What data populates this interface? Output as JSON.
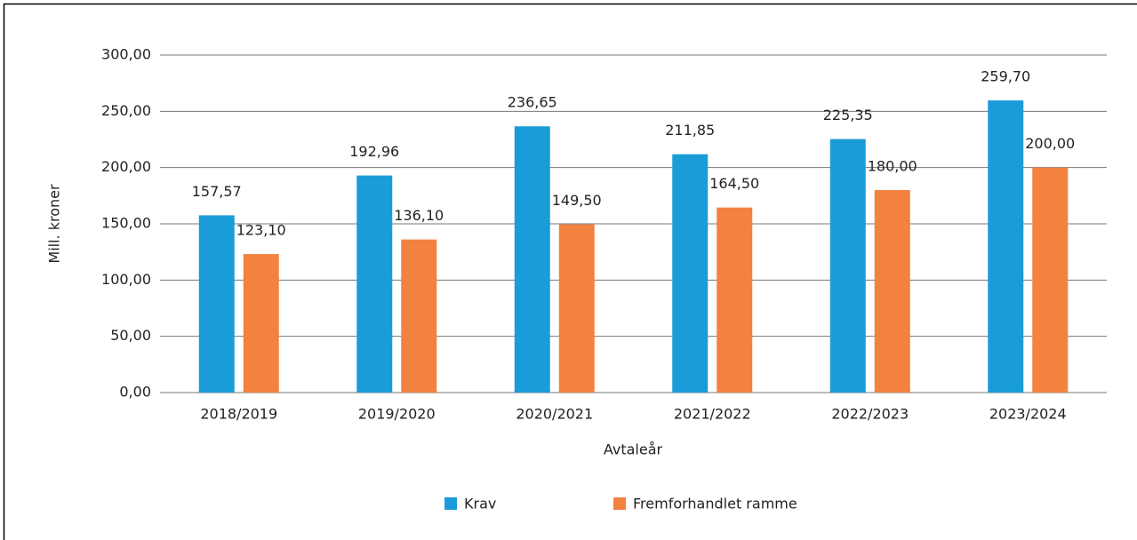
{
  "chart_data": {
    "type": "bar",
    "x_label": "Avtaleår",
    "y_label": "Mill. kroner",
    "categories": [
      "2018/2019",
      "2019/2020",
      "2020/2021",
      "2021/2022",
      "2022/2023",
      "2023/2024"
    ],
    "series": [
      {
        "name": "Krav",
        "color": "#1a9cd9",
        "values": [
          157.57,
          192.96,
          236.65,
          211.85,
          225.35,
          259.7
        ],
        "value_labels": [
          "157,57",
          "192,96",
          "236,65",
          "211,85",
          "225,35",
          "259,70"
        ]
      },
      {
        "name": "Fremforhandlet ramme",
        "color": "#f3813f",
        "values": [
          123.1,
          136.1,
          149.5,
          164.5,
          180.0,
          200.0
        ],
        "value_labels": [
          "123,10",
          "136,10",
          "149,50",
          "164,50",
          "180,00",
          "200,00"
        ]
      }
    ],
    "ylim": [
      0,
      300
    ],
    "yticks": [
      {
        "value": 0,
        "label": "0,00"
      },
      {
        "value": 50,
        "label": "50,00"
      },
      {
        "value": 100,
        "label": "100,00"
      },
      {
        "value": 150,
        "label": "150,00"
      },
      {
        "value": 200,
        "label": "200,00"
      },
      {
        "value": 250,
        "label": "250,00"
      },
      {
        "value": 300,
        "label": "300,00"
      }
    ],
    "grid": true
  }
}
